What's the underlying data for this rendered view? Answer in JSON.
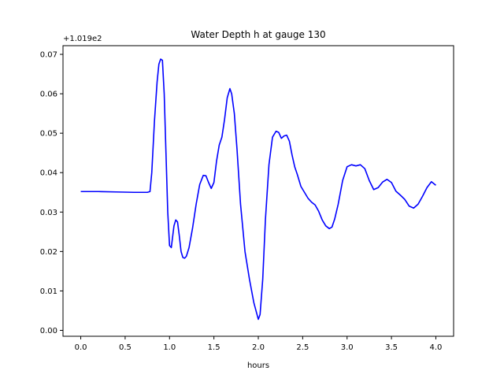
{
  "chart_data": {
    "type": "line",
    "title": "Water Depth h at gauge 130",
    "xlabel": "hours",
    "ylabel": "",
    "y_offset_label": "+1.019e2",
    "xlim": [
      -0.2,
      4.2
    ],
    "ylim": [
      -0.0015,
      0.0722
    ],
    "xticks": [
      0.0,
      0.5,
      1.0,
      1.5,
      2.0,
      2.5,
      3.0,
      3.5,
      4.0
    ],
    "xtick_labels": [
      "0.0",
      "0.5",
      "1.0",
      "1.5",
      "2.0",
      "2.5",
      "3.0",
      "3.5",
      "4.0"
    ],
    "yticks": [
      0.0,
      0.01,
      0.02,
      0.03,
      0.04,
      0.05,
      0.06,
      0.07
    ],
    "ytick_labels": [
      "0.00",
      "0.01",
      "0.02",
      "0.03",
      "0.04",
      "0.05",
      "0.06",
      "0.07"
    ],
    "grid": false,
    "line_color": "#0000ff",
    "series": [
      {
        "x": [
          0.0,
          0.2,
          0.4,
          0.6,
          0.75,
          0.78,
          0.8,
          0.83,
          0.86,
          0.88,
          0.9,
          0.92,
          0.94,
          0.96,
          0.98,
          1.0,
          1.02,
          1.05,
          1.07,
          1.09,
          1.11,
          1.13,
          1.15,
          1.17,
          1.19,
          1.22,
          1.26,
          1.3,
          1.34,
          1.38,
          1.41,
          1.44,
          1.47,
          1.5,
          1.53,
          1.56,
          1.59,
          1.62,
          1.65,
          1.68,
          1.7,
          1.73,
          1.76,
          1.8,
          1.85,
          1.9,
          1.95,
          2.0,
          2.02,
          2.05,
          2.08,
          2.12,
          2.16,
          2.2,
          2.23,
          2.26,
          2.29,
          2.32,
          2.35,
          2.38,
          2.41,
          2.44,
          2.48,
          2.52,
          2.56,
          2.6,
          2.64,
          2.68,
          2.72,
          2.76,
          2.8,
          2.83,
          2.86,
          2.9,
          2.95,
          3.0,
          3.05,
          3.1,
          3.15,
          3.2,
          3.25,
          3.3,
          3.35,
          3.4,
          3.45,
          3.5,
          3.55,
          3.6,
          3.65,
          3.7,
          3.75,
          3.8,
          3.85,
          3.9,
          3.95,
          4.0
        ],
        "y": [
          0.0352,
          0.0352,
          0.0351,
          0.035,
          0.035,
          0.0352,
          0.04,
          0.053,
          0.063,
          0.0675,
          0.0688,
          0.0685,
          0.06,
          0.045,
          0.03,
          0.0215,
          0.021,
          0.0265,
          0.028,
          0.0275,
          0.024,
          0.02,
          0.0185,
          0.0183,
          0.0188,
          0.021,
          0.026,
          0.032,
          0.037,
          0.0393,
          0.0392,
          0.0375,
          0.036,
          0.0375,
          0.043,
          0.047,
          0.049,
          0.0535,
          0.059,
          0.0613,
          0.06,
          0.055,
          0.046,
          0.032,
          0.02,
          0.013,
          0.007,
          0.0028,
          0.004,
          0.013,
          0.028,
          0.042,
          0.049,
          0.0505,
          0.0502,
          0.0487,
          0.0493,
          0.0495,
          0.048,
          0.0445,
          0.0415,
          0.0395,
          0.0365,
          0.035,
          0.0335,
          0.0325,
          0.0318,
          0.0302,
          0.028,
          0.0265,
          0.0258,
          0.0262,
          0.0282,
          0.032,
          0.038,
          0.0415,
          0.042,
          0.0417,
          0.042,
          0.041,
          0.038,
          0.0357,
          0.0362,
          0.0376,
          0.0383,
          0.0375,
          0.0353,
          0.0343,
          0.0332,
          0.0315,
          0.031,
          0.032,
          0.034,
          0.0362,
          0.0377,
          0.0368
        ]
      }
    ]
  }
}
